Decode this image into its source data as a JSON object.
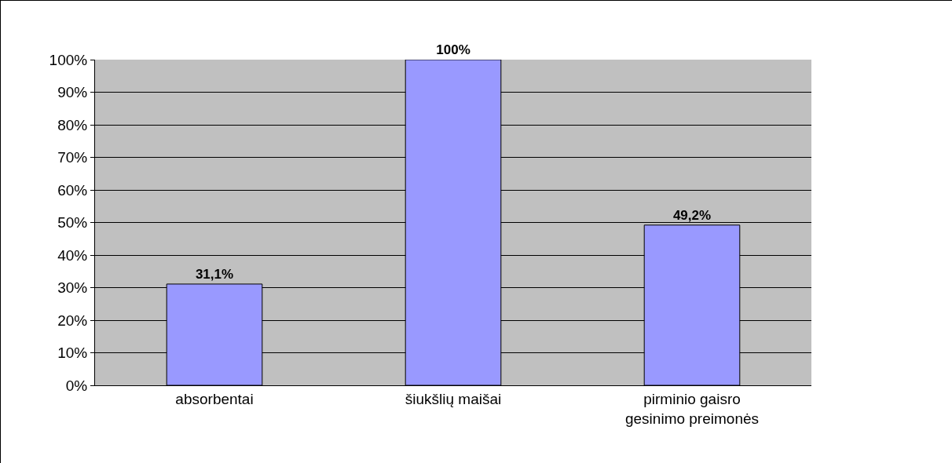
{
  "chart_data": {
    "type": "bar",
    "categories": [
      "absorbentai",
      "šiukšlių maišai",
      "pirminio gaisro gesinimo preimonės"
    ],
    "values": [
      31.1,
      100,
      49.2
    ],
    "color": "#9999ff",
    "value_labels": [
      "31,1%",
      "100%",
      "49,2%"
    ],
    "ylim": [
      0,
      100
    ],
    "yticks": [
      {
        "value": 0,
        "label": "0%"
      },
      {
        "value": 10,
        "label": "10%"
      },
      {
        "value": 20,
        "label": "20%"
      },
      {
        "value": 30,
        "label": "30%"
      },
      {
        "value": 40,
        "label": "40%"
      },
      {
        "value": 50,
        "label": "50%"
      },
      {
        "value": 60,
        "label": "60%"
      },
      {
        "value": 70,
        "label": "70%"
      },
      {
        "value": 80,
        "label": "80%"
      },
      {
        "value": 90,
        "label": "90%"
      },
      {
        "value": 100,
        "label": "100%"
      }
    ],
    "grid": "y"
  }
}
